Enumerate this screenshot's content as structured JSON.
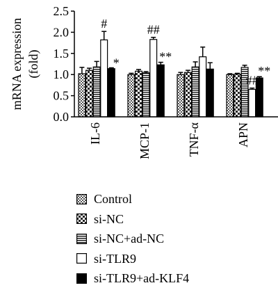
{
  "chart_data": {
    "type": "bar",
    "ylabel": "mRNA expression\n(fold)",
    "ylim": [
      0,
      2.5
    ],
    "yticks": [
      0.0,
      0.5,
      1.0,
      1.5,
      2.0,
      2.5
    ],
    "ytick_labels": [
      "0.0",
      "0.5",
      "1.0",
      "1.5",
      "2.0",
      "2.5"
    ],
    "categories": [
      "IL-6",
      "MCP-1",
      "TNF-α",
      "APN"
    ],
    "series": [
      {
        "name": "Control",
        "pattern": "checker-fine",
        "values": [
          1.02,
          1.0,
          1.0,
          1.0
        ],
        "errors": [
          0.15,
          0.03,
          0.05,
          0.02
        ]
      },
      {
        "name": "si-NC",
        "pattern": "checker-coarse",
        "values": [
          1.1,
          1.08,
          1.05,
          1.01
        ],
        "errors": [
          0.05,
          0.04,
          0.05,
          0.02
        ]
      },
      {
        "name": "si-NC+ad-NC",
        "pattern": "horizontal-lines",
        "values": [
          1.18,
          1.04,
          1.18,
          1.17
        ],
        "errors": [
          0.13,
          0.03,
          0.12,
          0.05
        ]
      },
      {
        "name": "si-TLR9",
        "pattern": "white",
        "values": [
          1.82,
          1.83,
          1.42,
          0.65
        ],
        "errors": [
          0.2,
          0.05,
          0.23,
          0.03
        ]
      },
      {
        "name": "si-TLR9+ad-KLF4",
        "pattern": "black",
        "values": [
          1.14,
          1.23,
          1.13,
          0.92
        ],
        "errors": [
          0.02,
          0.06,
          0.15,
          0.03
        ]
      }
    ],
    "annotations": [
      {
        "category": "IL-6",
        "series": "si-TLR9",
        "text": "#"
      },
      {
        "category": "IL-6",
        "series": "si-TLR9+ad-KLF4",
        "text": "*"
      },
      {
        "category": "MCP-1",
        "series": "si-TLR9",
        "text": "##"
      },
      {
        "category": "MCP-1",
        "series": "si-TLR9+ad-KLF4",
        "text": "**"
      },
      {
        "category": "APN",
        "series": "si-TLR9",
        "text": "##"
      },
      {
        "category": "APN",
        "series": "si-TLR9+ad-KLF4",
        "text": "**"
      }
    ],
    "legend_position": "bottom-center"
  }
}
